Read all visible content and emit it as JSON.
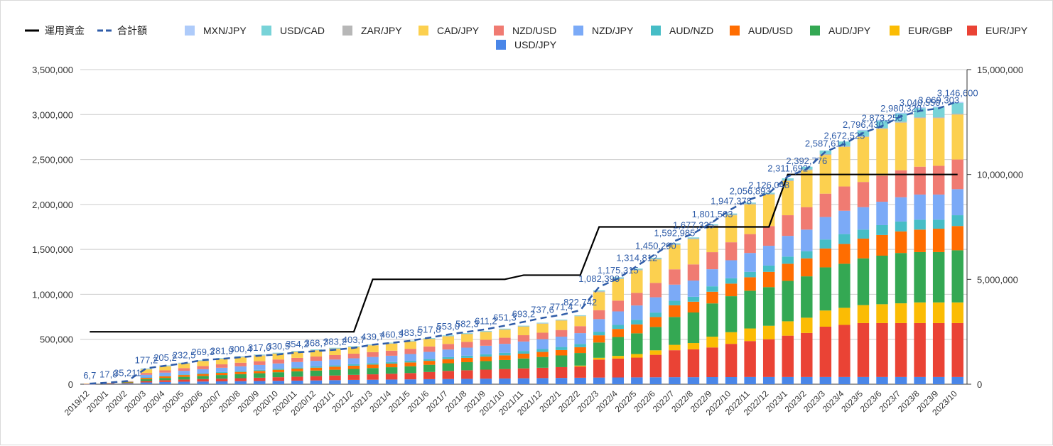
{
  "chart_data": {
    "type": "bar",
    "stacked": true,
    "title": "",
    "xlabel": "",
    "ylabel": "",
    "ylim": [
      0,
      3500000
    ],
    "y2lim": [
      0,
      15000000
    ],
    "yticks": [
      "0",
      "500,000",
      "1,000,000",
      "1,500,000",
      "2,000,000",
      "2,500,000",
      "3,000,000",
      "3,500,000"
    ],
    "y2ticks": [
      "0",
      "5,000,000",
      "10,000,000",
      "15,000,000"
    ],
    "grid": true,
    "legend_position": "top",
    "categories": [
      "2019/12",
      "2020/1",
      "2020/2",
      "2020/3",
      "2020/4",
      "2020/5",
      "2020/6",
      "2020/7",
      "2020/8",
      "2020/9",
      "2020/10",
      "2020/11",
      "2020/12",
      "2021/1",
      "2021/2",
      "2021/3",
      "2021/4",
      "2021/5",
      "2021/6",
      "2021/7",
      "2021/8",
      "2021/9",
      "2021/10",
      "2021/11",
      "2021/12",
      "2022/1",
      "2022/2",
      "2022/3",
      "2022/4",
      "2022/5",
      "2022/6",
      "2022/7",
      "2022/8",
      "2022/9",
      "2022/10",
      "2022/11",
      "2022/12",
      "2023/1",
      "2023/2",
      "2023/3",
      "2023/4",
      "2023/5",
      "2023/6",
      "2023/7",
      "2023/8",
      "2023/9",
      "2023/10"
    ],
    "bar_series": [
      {
        "name": "USD/JPY",
        "color": "#4a86e8",
        "values": [
          2000,
          5000,
          8000,
          20000,
          25000,
          28000,
          30000,
          32000,
          34000,
          36000,
          38000,
          40000,
          42000,
          45000,
          48000,
          50000,
          52000,
          54000,
          56000,
          58000,
          60000,
          62000,
          64000,
          66000,
          68000,
          70000,
          72000,
          74000,
          75000,
          76000,
          77000,
          78000,
          78000,
          79000,
          79000,
          80000,
          80000,
          80000,
          80000,
          80000,
          80000,
          80000,
          80000,
          80000,
          80000,
          80000,
          80000
        ]
      },
      {
        "name": "EUR/JPY",
        "color": "#ea4335",
        "values": [
          1000,
          3000,
          6000,
          15000,
          20000,
          24000,
          27000,
          30000,
          33000,
          36000,
          40000,
          44000,
          48000,
          52000,
          56000,
          60000,
          65000,
          70000,
          80000,
          90000,
          95000,
          100000,
          105000,
          110000,
          115000,
          120000,
          125000,
          200000,
          210000,
          220000,
          250000,
          300000,
          310000,
          330000,
          370000,
          400000,
          420000,
          460000,
          490000,
          560000,
          580000,
          600000,
          600000,
          600000,
          600000,
          600000,
          600000
        ]
      },
      {
        "name": "EUR/GBP",
        "color": "#fbbc04",
        "values": [
          0,
          0,
          0,
          0,
          0,
          0,
          0,
          0,
          0,
          0,
          0,
          0,
          0,
          0,
          0,
          0,
          0,
          0,
          0,
          0,
          0,
          0,
          0,
          0,
          0,
          0,
          10000,
          20000,
          30000,
          40000,
          50000,
          60000,
          70000,
          120000,
          130000,
          140000,
          150000,
          160000,
          170000,
          180000,
          190000,
          200000,
          210000,
          220000,
          230000,
          230000,
          230000
        ]
      },
      {
        "name": "AUD/JPY",
        "color": "#34a853",
        "values": [
          1000,
          3000,
          6000,
          20000,
          25000,
          30000,
          35000,
          40000,
          45000,
          50000,
          55000,
          60000,
          62000,
          64000,
          66000,
          70000,
          72000,
          76000,
          80000,
          85000,
          90000,
          95000,
          100000,
          110000,
          120000,
          130000,
          140000,
          170000,
          210000,
          230000,
          260000,
          310000,
          340000,
          370000,
          400000,
          420000,
          430000,
          450000,
          460000,
          480000,
          490000,
          520000,
          540000,
          560000,
          560000,
          560000,
          580000
        ]
      },
      {
        "name": "AUD/USD",
        "color": "#ff6d01",
        "values": [
          500,
          1000,
          5000,
          15000,
          18000,
          20000,
          22000,
          24000,
          25000,
          26000,
          28000,
          30000,
          32000,
          34000,
          36000,
          38000,
          40000,
          42000,
          44000,
          46000,
          48000,
          50000,
          52000,
          54000,
          56000,
          60000,
          65000,
          80000,
          90000,
          100000,
          110000,
          130000,
          120000,
          130000,
          140000,
          150000,
          170000,
          190000,
          200000,
          210000,
          220000,
          220000,
          230000,
          240000,
          250000,
          260000,
          270000
        ]
      },
      {
        "name": "AUD/NZD",
        "color": "#46bdc6",
        "values": [
          0,
          0,
          0,
          5000,
          6000,
          7000,
          8000,
          9000,
          10000,
          11000,
          12000,
          13000,
          14000,
          15000,
          16000,
          17000,
          18000,
          19000,
          20000,
          22000,
          24000,
          26000,
          28000,
          30000,
          32000,
          34000,
          36000,
          40000,
          45000,
          50000,
          50000,
          50000,
          55000,
          60000,
          60000,
          60000,
          70000,
          80000,
          80000,
          100000,
          110000,
          100000,
          110000,
          110000,
          110000,
          100000,
          120000
        ]
      },
      {
        "name": "NZD/JPY",
        "color": "#7baaf7",
        "values": [
          1000,
          2000,
          4000,
          30000,
          35000,
          40000,
          45000,
          48000,
          52000,
          55000,
          58000,
          60000,
          62000,
          64000,
          66000,
          68000,
          70000,
          75000,
          80000,
          85000,
          90000,
          95000,
          100000,
          105000,
          110000,
          115000,
          120000,
          140000,
          150000,
          160000,
          170000,
          180000,
          180000,
          190000,
          200000,
          210000,
          220000,
          230000,
          240000,
          250000,
          260000,
          250000,
          260000,
          270000,
          280000,
          280000,
          290000
        ]
      },
      {
        "name": "NZD/USD",
        "color": "#f07b72",
        "values": [
          500,
          1000,
          3000,
          20000,
          25000,
          30000,
          35000,
          38000,
          40000,
          42000,
          44000,
          46000,
          48000,
          50000,
          52000,
          54000,
          56000,
          58000,
          60000,
          62000,
          64000,
          66000,
          68000,
          70000,
          72000,
          74000,
          78000,
          100000,
          120000,
          140000,
          160000,
          170000,
          180000,
          190000,
          200000,
          210000,
          220000,
          230000,
          250000,
          260000,
          270000,
          280000,
          290000,
          300000,
          310000,
          320000,
          330000
        ]
      },
      {
        "name": "CAD/JPY",
        "color": "#fcd04f",
        "values": [
          500,
          1000,
          3000,
          40000,
          45000,
          50000,
          55000,
          58000,
          60000,
          62000,
          64000,
          66000,
          68000,
          70000,
          72000,
          75000,
          78000,
          80000,
          82000,
          84000,
          86000,
          88000,
          90000,
          95000,
          100000,
          105000,
          110000,
          200000,
          240000,
          250000,
          260000,
          270000,
          280000,
          290000,
          300000,
          330000,
          350000,
          380000,
          410000,
          430000,
          440000,
          500000,
          520000,
          530000,
          540000,
          530000,
          500000
        ]
      },
      {
        "name": "ZAR/JPY",
        "color": "#b7b7b7",
        "values": [
          0,
          0,
          0,
          5000,
          5000,
          5000,
          5000,
          5000,
          5000,
          5000,
          5000,
          5000,
          5000,
          5000,
          5000,
          5000,
          5000,
          5000,
          5000,
          5000,
          5000,
          5000,
          5000,
          5000,
          5000,
          5000,
          5000,
          10000,
          10000,
          10000,
          10000,
          10000,
          10000,
          10000,
          10000,
          10000,
          10000,
          10000,
          10000,
          10000,
          10000,
          10000,
          10000,
          10000,
          10000,
          10000,
          10000
        ]
      },
      {
        "name": "USD/CAD",
        "color": "#78d3d8",
        "values": [
          0,
          0,
          0,
          5000,
          5000,
          5000,
          5000,
          6000,
          6000,
          6000,
          6000,
          6000,
          6000,
          6000,
          6000,
          6000,
          6000,
          6000,
          6000,
          6000,
          6000,
          6000,
          6000,
          6000,
          6000,
          6000,
          6000,
          10000,
          10000,
          10000,
          10000,
          10000,
          10000,
          10000,
          10000,
          10000,
          10000,
          20000,
          30000,
          40000,
          50000,
          60000,
          80000,
          90000,
          100000,
          110000,
          120000
        ]
      },
      {
        "name": "MXN/JPY",
        "color": "#aecbfa",
        "values": [
          0,
          0,
          0,
          0,
          0,
          0,
          0,
          0,
          0,
          0,
          0,
          0,
          0,
          0,
          0,
          0,
          0,
          0,
          0,
          0,
          0,
          0,
          0,
          0,
          0,
          0,
          0,
          0,
          0,
          0,
          0,
          0,
          0,
          0,
          0,
          0,
          0,
          0,
          0,
          0,
          0,
          10000,
          10000,
          10000,
          10000,
          10000,
          10000
        ]
      }
    ],
    "line_series": [
      {
        "name": "運用資金",
        "color": "#000000",
        "style": "solid",
        "axis": "right",
        "values": [
          2500000,
          2500000,
          2500000,
          2500000,
          2500000,
          2500000,
          2500000,
          2500000,
          2500000,
          2500000,
          2500000,
          2500000,
          2500000,
          2500000,
          2500000,
          5000000,
          5000000,
          5000000,
          5000000,
          5000000,
          5000000,
          5000000,
          5000000,
          5200000,
          5200000,
          5200000,
          5200000,
          7500000,
          7500000,
          7500000,
          7500000,
          7500000,
          7500000,
          7500000,
          7500000,
          7500000,
          7500000,
          10000000,
          10000000,
          10000000,
          10000000,
          10000000,
          10000000,
          10000000,
          10000000,
          10000000,
          10000000
        ]
      },
      {
        "name": "合計額",
        "color": "#2f5ca8",
        "style": "dashed",
        "axis": "left",
        "values": [
          6754,
          17852,
          35211,
          177253,
          205232,
          232556,
          269320,
          281930,
          300489,
          317000,
          330512,
          354231,
          368712,
          383231,
          403735,
          439788,
          460312,
          483520,
          517830,
          553025,
          582340,
          611270,
          651350,
          693276,
          737612,
          771437,
          822742,
          1082390,
          1175315,
          1314812,
          1450290,
          1592985,
          1677325,
          1801503,
          1947378,
          2056893,
          2126048,
          2311692,
          2392776,
          2587614,
          2672525,
          2796430,
          2873255,
          2980320,
          3040550,
          3069303,
          3146600
        ]
      },
      {
        "name": "label_text",
        "color": "#2f5ca8",
        "style": "none",
        "axis": "left",
        "values": []
      }
    ],
    "data_labels": [
      "6,7",
      "17,8",
      "35,211",
      "177,2",
      "205,2",
      "232,5",
      "269,3",
      "281,9",
      "300,4",
      "317,0",
      "330,5",
      "354,2",
      "368,7",
      "383,2",
      "403,7",
      "439,7",
      "460,3",
      "483,5",
      "517,8",
      "553,0",
      "582,3",
      "611,2",
      "651,3",
      "693,2",
      "737,6",
      "771,4",
      "822,742",
      "1,082,390",
      "1,175,315",
      "1,314,812",
      "1,450,290",
      "1,592,985",
      "1,677,325",
      "1,801,503",
      "1,947,378",
      "2,056,893",
      "2,126,048",
      "2,311,692",
      "2,392,776",
      "2,587,614",
      "2,672,525",
      "2,796,430",
      "2,873,255",
      "2,980,320",
      "3,040,550",
      "3,069,303",
      "3,146,600"
    ],
    "legend": [
      "運用資金",
      "合計額",
      "MXN/JPY",
      "USD/CAD",
      "ZAR/JPY",
      "CAD/JPY",
      "NZD/USD",
      "NZD/JPY",
      "AUD/NZD",
      "AUD/USD",
      "AUD/JPY",
      "EUR/GBP",
      "EUR/JPY",
      "USD/JPY"
    ]
  }
}
